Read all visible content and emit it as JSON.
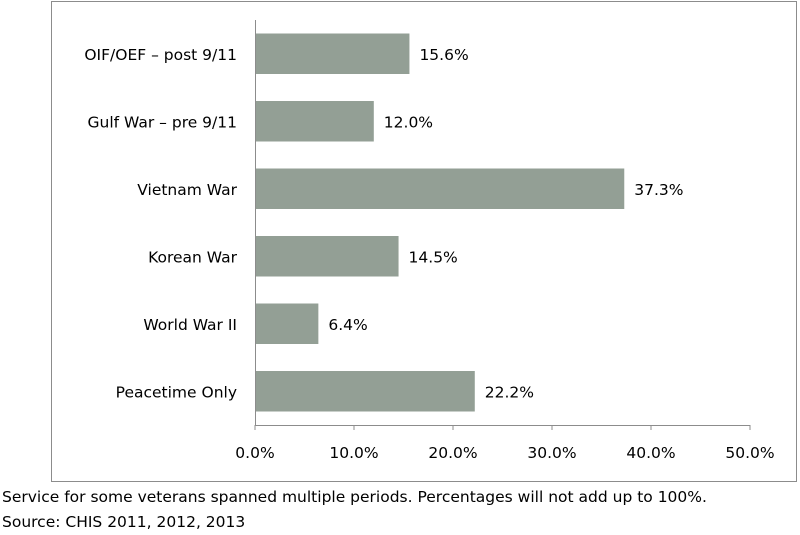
{
  "chart_data": {
    "type": "bar",
    "orientation": "horizontal",
    "categories": [
      "OIF/OEF – post 9/11",
      "Gulf War – pre 9/11",
      "Vietnam War",
      "Korean War",
      "World War II",
      "Peacetime Only"
    ],
    "values": [
      15.6,
      12.0,
      37.3,
      14.5,
      6.4,
      22.2
    ],
    "data_labels": [
      "15.6%",
      "12.0%",
      "37.3%",
      "14.5%",
      "6.4%",
      "22.2%"
    ],
    "xlim": [
      0,
      50
    ],
    "x_ticks": [
      0,
      10,
      20,
      30,
      40,
      50
    ],
    "x_tick_labels": [
      "0.0%",
      "10.0%",
      "20.0%",
      "30.0%",
      "40.0%",
      "50.0%"
    ],
    "title": "",
    "xlabel": "",
    "ylabel": "",
    "grid": false,
    "legend": "none",
    "bar_color": "#939f95",
    "frame_color": "#8c8c8c"
  },
  "notes": {
    "line1": "Service for some veterans spanned multiple periods. Percentages will not add up to 100%.",
    "line2": "Source: CHIS 2011, 2012, 2013"
  }
}
